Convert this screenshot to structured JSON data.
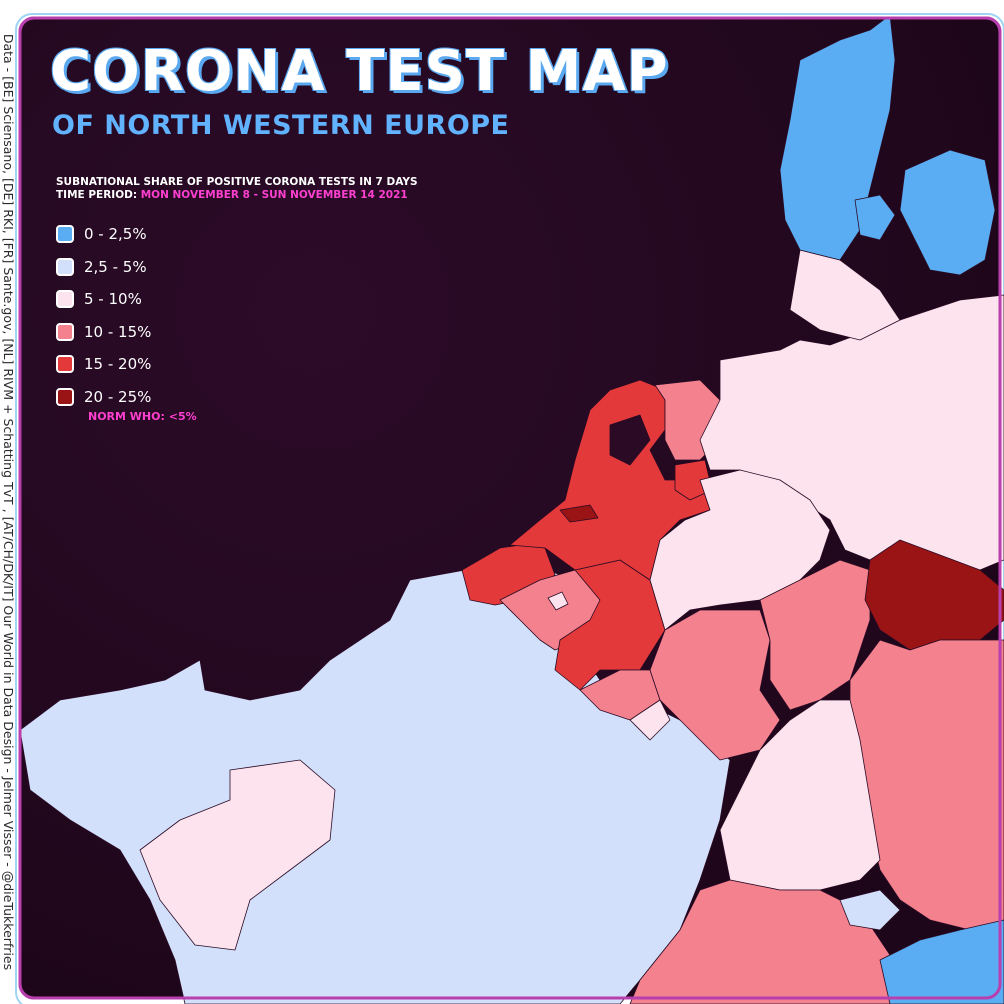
{
  "map": {
    "title": "CORONA TEST MAP",
    "subtitle": "OF NORTH WESTERN EUROPE",
    "legend_heading": "SUBNATIONAL SHARE OF POSITIVE CORONA TESTS IN 7 DAYS",
    "period_label": "TIME PERIOD:",
    "period_value": "MON NOVEMBER 8  - SUN NOVEMBER 14 2021",
    "legend": [
      {
        "label": "0 - 2,5%",
        "color": "#5aacf3"
      },
      {
        "label": "2,5 - 5%",
        "color": "#d2e0fb"
      },
      {
        "label": "5 - 10%",
        "color": "#fce3ee"
      },
      {
        "label": "10 - 15%",
        "color": "#f4818e"
      },
      {
        "label": "15 - 20%",
        "color": "#e3393a"
      },
      {
        "label": "20 - 25%",
        "color": "#9a1416"
      }
    ],
    "norm": "NORM WHO: <5%",
    "sea_color": "#23081f",
    "frame_color": "#b93fae",
    "credit": "Data - [BE] Sciensano, [DE] RKI, [FR] Sante.gov, [NL] RIVM + Schatting TvT , [AT/CH/DK/IT] Our World in Data      Design - Jelmer Visser - @dieTukkerfries"
  }
}
